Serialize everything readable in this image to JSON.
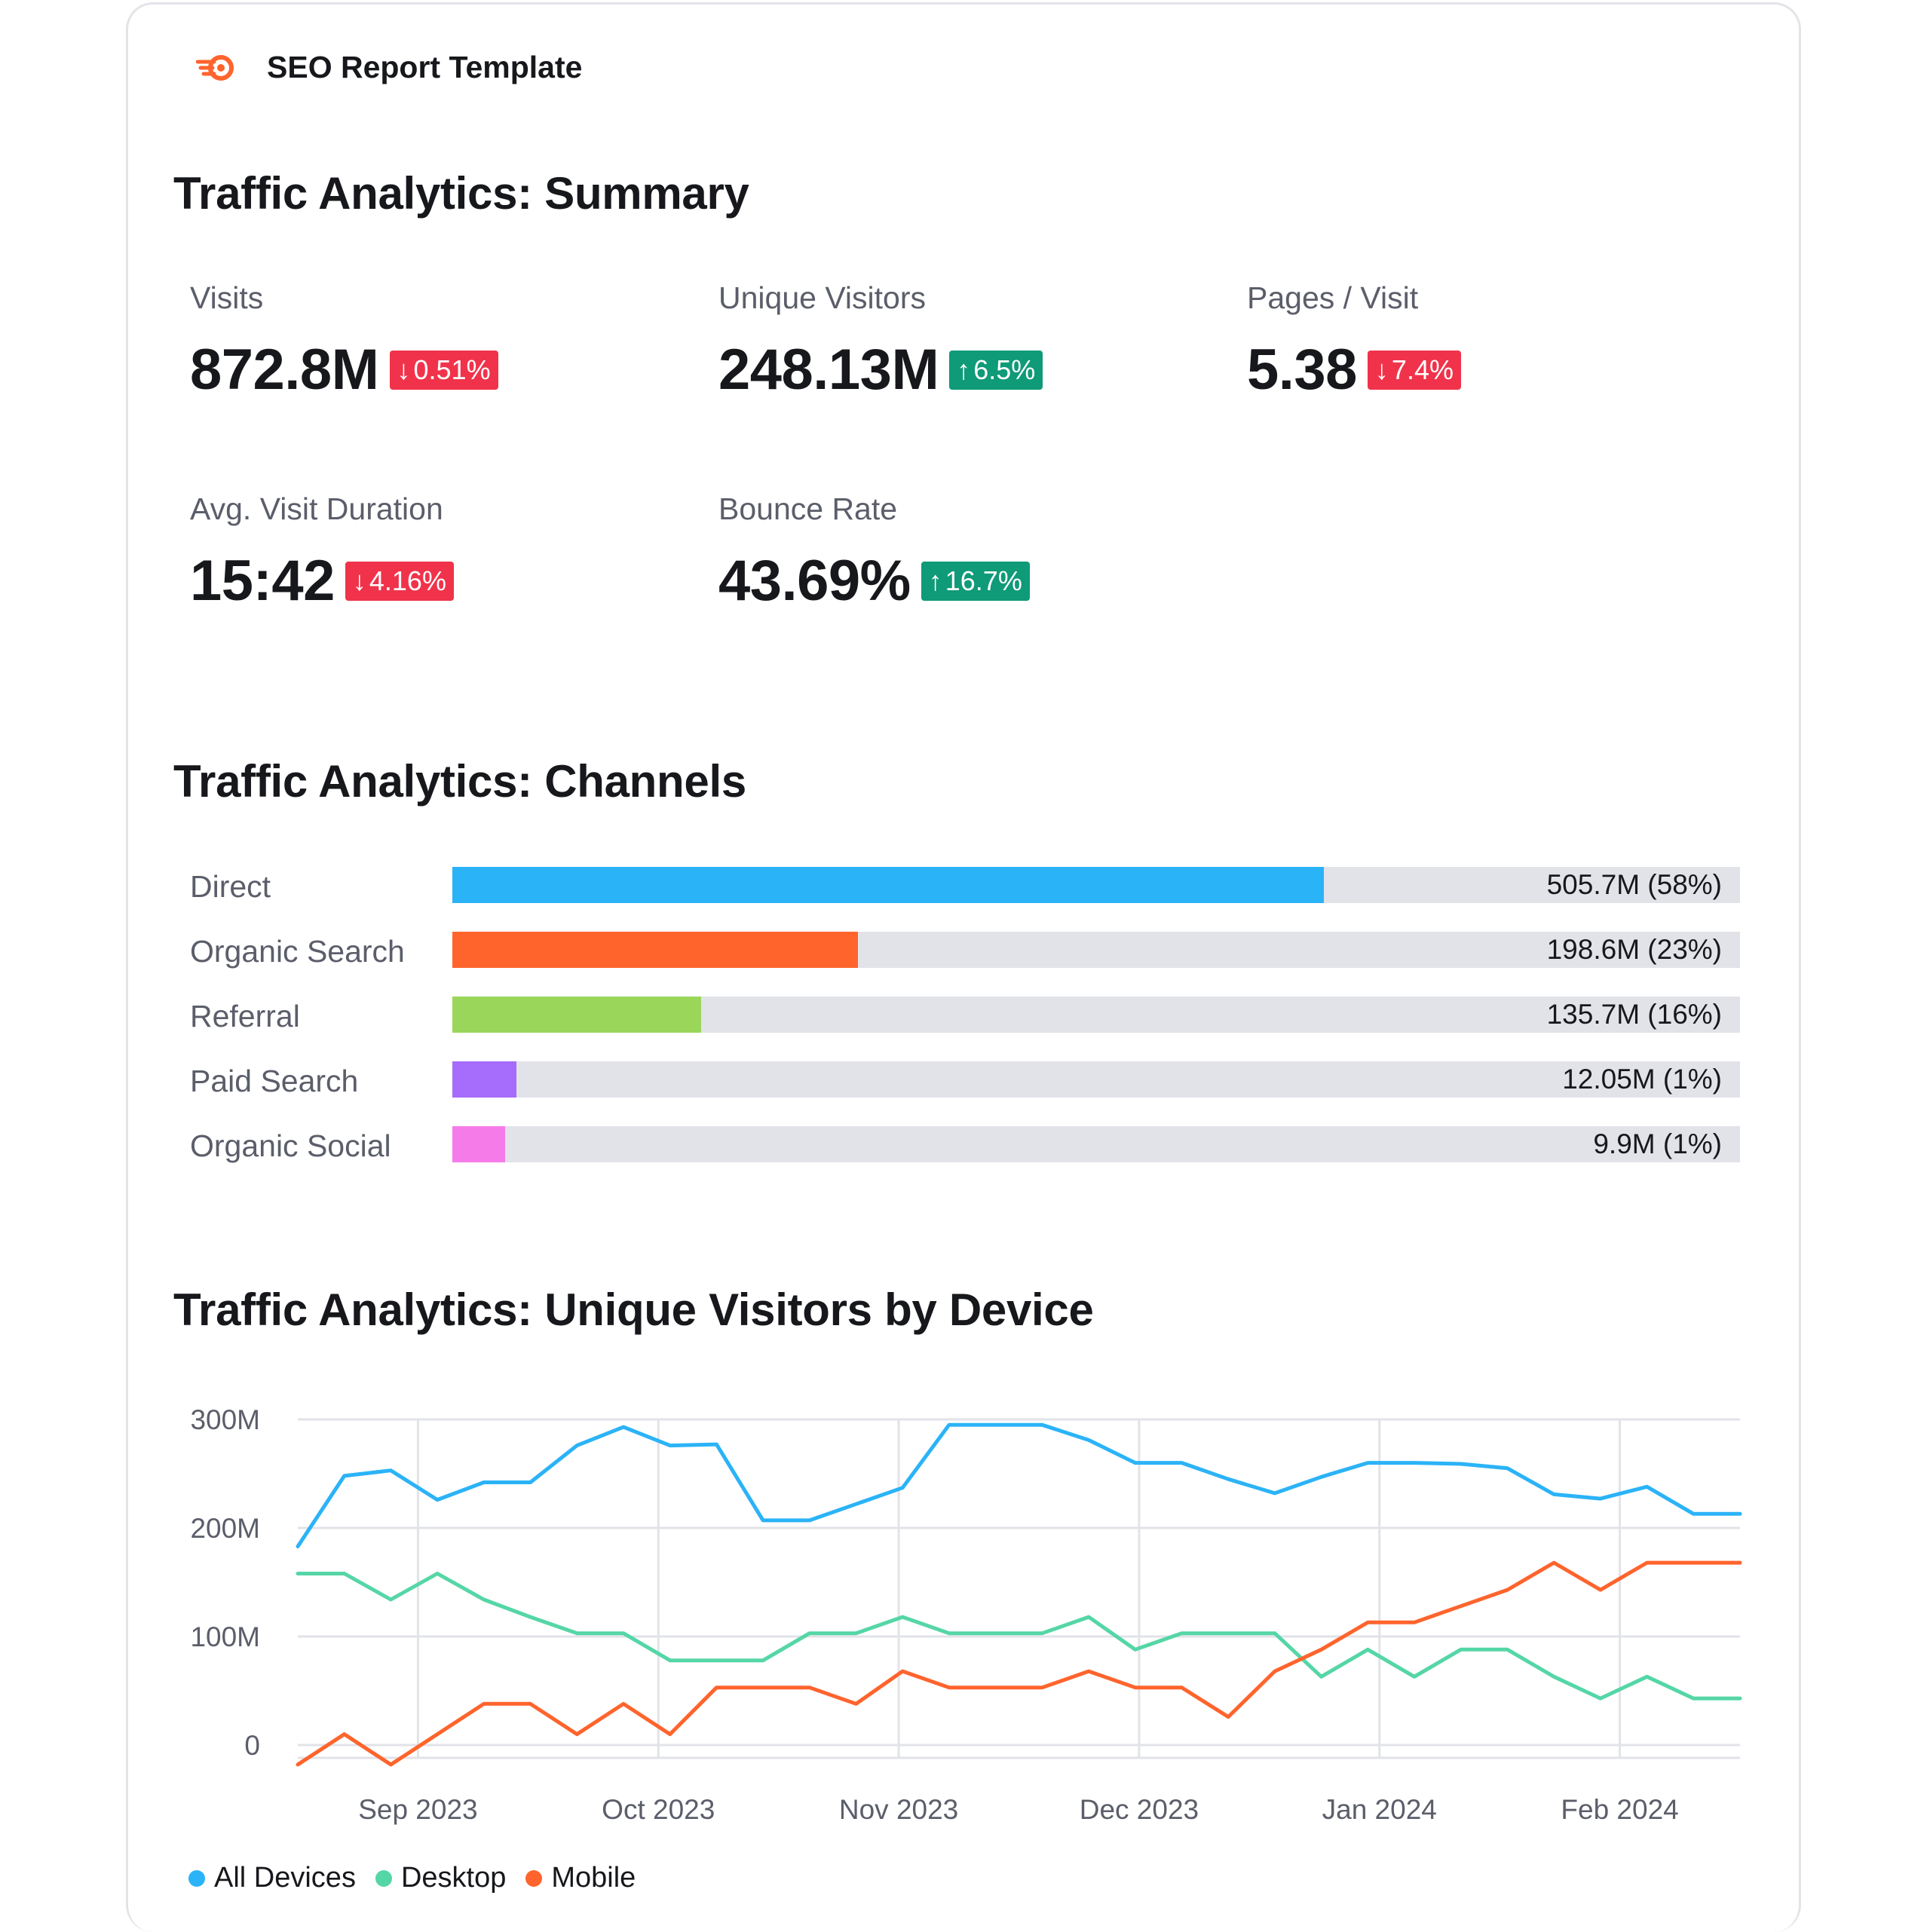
{
  "brand": {
    "title": "SEO Report Template",
    "logo_icon": "semrush-fire-icon"
  },
  "summary": {
    "title": "Traffic Analytics: Summary",
    "metrics": [
      {
        "label": "Visits",
        "value": "872.8M",
        "change": "0.51%",
        "direction": "down"
      },
      {
        "label": "Unique Visitors",
        "value": "248.13M",
        "change": "6.5%",
        "direction": "up"
      },
      {
        "label": "Pages / Visit",
        "value": "5.38",
        "change": "7.4%",
        "direction": "down"
      },
      {
        "label": "Avg. Visit Duration",
        "value": "15:42",
        "change": "4.16%",
        "direction": "down"
      },
      {
        "label": "Bounce Rate",
        "value": "43.69%",
        "change": "16.7%",
        "direction": "up"
      }
    ]
  },
  "channels": {
    "title": "Traffic Analytics: Channels",
    "items": [
      {
        "label": "Direct",
        "value": "505.7M (58%)",
        "share": 0.677,
        "color": "#2bb3f7"
      },
      {
        "label": "Organic Search",
        "value": "198.6M (23%)",
        "share": 0.315,
        "color": "#ff642d"
      },
      {
        "label": "Referral",
        "value": "135.7M (16%)",
        "share": 0.193,
        "color": "#9ad65a"
      },
      {
        "label": "Paid Search",
        "value": "12.05M (1%)",
        "share": 0.05,
        "color": "#a66cfb"
      },
      {
        "label": "Organic Social",
        "value": "9.9M (1%)",
        "share": 0.041,
        "color": "#f57ce8"
      }
    ]
  },
  "device_chart": {
    "title": "Traffic Analytics: Unique Visitors by Device",
    "legend": [
      {
        "name": "All Devices",
        "color": "#2bb3f7"
      },
      {
        "name": "Desktop",
        "color": "#55d6a6"
      },
      {
        "name": "Mobile",
        "color": "#ff642d"
      }
    ]
  },
  "chart_data": {
    "type": "line",
    "title": "Traffic Analytics: Unique Visitors by Device",
    "xlabel": "",
    "ylabel": "",
    "y_ticks": [
      "0",
      "100M",
      "200M",
      "300M"
    ],
    "ylim": [
      0,
      300
    ],
    "y_unit": "M",
    "x_tick_labels": [
      "Sep 2023",
      "Oct 2023",
      "Nov 2023",
      "Dec 2023",
      "Jan 2024",
      "Feb 2024"
    ],
    "x_tick_positions": [
      2.5,
      7.5,
      12.5,
      17.5,
      22.5,
      27.5
    ],
    "x_range": [
      0,
      30
    ],
    "grid": true,
    "legend_position": "bottom-left",
    "series": [
      {
        "name": "All Devices",
        "color": "#2bb3f7",
        "values": [
          183,
          248,
          253,
          226,
          242,
          242,
          276,
          293,
          276,
          277,
          207,
          207,
          222,
          237,
          295,
          295,
          295,
          281,
          260,
          260,
          245,
          232,
          247,
          260,
          260,
          259,
          255,
          231,
          227,
          238,
          213,
          213
        ]
      },
      {
        "name": "Desktop",
        "color": "#55d6a6",
        "values": [
          158,
          158,
          134,
          158,
          134,
          118,
          103,
          103,
          78,
          78,
          78,
          103,
          103,
          118,
          103,
          103,
          103,
          118,
          88,
          103,
          103,
          103,
          63,
          88,
          63,
          88,
          88,
          63,
          43,
          63,
          43,
          43
        ]
      },
      {
        "name": "Mobile",
        "color": "#ff642d",
        "values": [
          -18,
          10,
          -18,
          10,
          38,
          38,
          10,
          38,
          10,
          53,
          53,
          53,
          38,
          68,
          53,
          53,
          53,
          68,
          53,
          53,
          26,
          68,
          88,
          113,
          113,
          128,
          143,
          168,
          143,
          168,
          168,
          168
        ]
      }
    ]
  }
}
